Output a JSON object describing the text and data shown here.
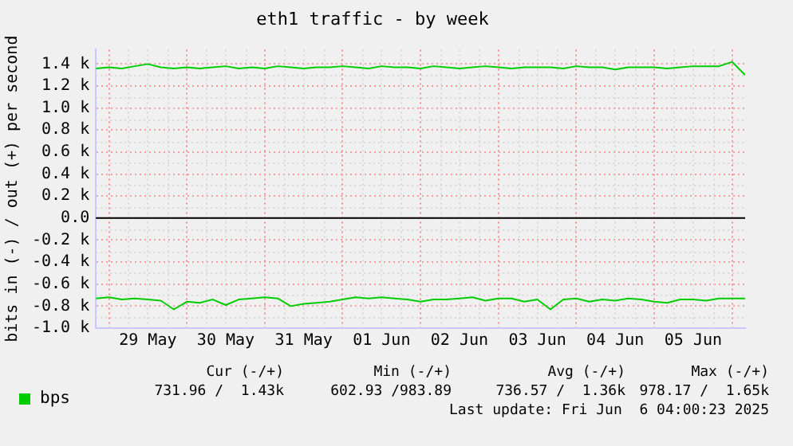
{
  "chart_data": {
    "type": "line",
    "title": "eth1 traffic - by week",
    "ylabel": "bits in (-) / out (+) per second",
    "x": [
      "2025-05-28T20:00",
      "2025-05-29T00:00",
      "2025-05-29T04:00",
      "2025-05-29T08:00",
      "2025-05-29T12:00",
      "2025-05-29T16:00",
      "2025-05-29T20:00",
      "2025-05-30T00:00",
      "2025-05-30T04:00",
      "2025-05-30T08:00",
      "2025-05-30T12:00",
      "2025-05-30T16:00",
      "2025-05-30T20:00",
      "2025-05-31T00:00",
      "2025-05-31T04:00",
      "2025-05-31T08:00",
      "2025-05-31T12:00",
      "2025-05-31T16:00",
      "2025-05-31T20:00",
      "2025-06-01T00:00",
      "2025-06-01T04:00",
      "2025-06-01T08:00",
      "2025-06-01T12:00",
      "2025-06-01T16:00",
      "2025-06-01T20:00",
      "2025-06-02T00:00",
      "2025-06-02T04:00",
      "2025-06-02T08:00",
      "2025-06-02T12:00",
      "2025-06-02T16:00",
      "2025-06-02T20:00",
      "2025-06-03T00:00",
      "2025-06-03T04:00",
      "2025-06-03T08:00",
      "2025-06-03T12:00",
      "2025-06-03T16:00",
      "2025-06-03T20:00",
      "2025-06-04T00:00",
      "2025-06-04T04:00",
      "2025-06-04T08:00",
      "2025-06-04T12:00",
      "2025-06-04T16:00",
      "2025-06-04T20:00",
      "2025-06-05T00:00",
      "2025-06-05T04:00",
      "2025-06-05T08:00",
      "2025-06-05T12:00",
      "2025-06-05T16:00",
      "2025-06-05T20:00",
      "2025-06-06T00:00",
      "2025-06-06T04:00"
    ],
    "series": [
      {
        "name": "bps",
        "color": "#00cc00",
        "values": [
          1360,
          1370,
          1360,
          1380,
          1400,
          1370,
          1360,
          1370,
          1360,
          1370,
          1380,
          1360,
          1370,
          1360,
          1380,
          1370,
          1360,
          1370,
          1370,
          1380,
          1370,
          1360,
          1380,
          1370,
          1370,
          1360,
          1380,
          1370,
          1360,
          1370,
          1380,
          1370,
          1360,
          1370,
          1370,
          1370,
          1360,
          1380,
          1370,
          1370,
          1350,
          1370,
          1370,
          1370,
          1360,
          1370,
          1380,
          1380,
          1380,
          1420,
          1300
        ]
      },
      {
        "color": "#00cc00",
        "values": [
          -730,
          -720,
          -740,
          -730,
          -740,
          -750,
          -830,
          -760,
          -770,
          -740,
          -790,
          -740,
          -730,
          -720,
          -730,
          -800,
          -780,
          -770,
          -760,
          -740,
          -720,
          -730,
          -720,
          -730,
          -740,
          -760,
          -740,
          -740,
          -730,
          -720,
          -750,
          -730,
          -730,
          -760,
          -740,
          -830,
          -740,
          -730,
          -760,
          -740,
          -750,
          -730,
          -740,
          -760,
          -770,
          -740,
          -740,
          -750,
          -730,
          -730,
          -730
        ]
      }
    ],
    "xlim": [
      "2025-05-28T20:00",
      "2025-06-06T04:00"
    ],
    "xticks": [
      {
        "value": "2025-05-29T00:00",
        "label": null
      },
      {
        "value": "2025-05-29T12:00",
        "label": "29 May"
      },
      {
        "value": "2025-05-30T00:00",
        "label": null
      },
      {
        "value": "2025-05-30T12:00",
        "label": "30 May"
      },
      {
        "value": "2025-05-31T00:00",
        "label": null
      },
      {
        "value": "2025-05-31T12:00",
        "label": "31 May"
      },
      {
        "value": "2025-06-01T00:00",
        "label": null
      },
      {
        "value": "2025-06-01T12:00",
        "label": "01 Jun"
      },
      {
        "value": "2025-06-02T00:00",
        "label": null
      },
      {
        "value": "2025-06-02T12:00",
        "label": "02 Jun"
      },
      {
        "value": "2025-06-03T00:00",
        "label": null
      },
      {
        "value": "2025-06-03T12:00",
        "label": "03 Jun"
      },
      {
        "value": "2025-06-04T00:00",
        "label": null
      },
      {
        "value": "2025-06-04T12:00",
        "label": "04 Jun"
      },
      {
        "value": "2025-06-05T00:00",
        "label": null
      },
      {
        "value": "2025-06-05T12:00",
        "label": "05 Jun"
      },
      {
        "value": "2025-06-06T00:00",
        "label": null
      }
    ],
    "ylim": [
      -1000,
      1530
    ],
    "yticks": [
      {
        "value": -1000,
        "label": "-1.0 k"
      },
      {
        "value": -800,
        "label": "-0.8 k"
      },
      {
        "value": -600,
        "label": "-0.6 k"
      },
      {
        "value": -400,
        "label": "-0.4 k"
      },
      {
        "value": -200,
        "label": "-0.2 k"
      },
      {
        "value": 0,
        "label": "0.0"
      },
      {
        "value": 200,
        "label": "0.2 k"
      },
      {
        "value": 400,
        "label": "0.4 k"
      },
      {
        "value": 600,
        "label": "0.6 k"
      },
      {
        "value": 800,
        "label": "0.8 k"
      },
      {
        "value": 1000,
        "label": "1.0 k"
      },
      {
        "value": 1200,
        "label": "1.2 k"
      },
      {
        "value": 1400,
        "label": "1.4 k"
      }
    ],
    "ref_lines": [
      {
        "axis": "y",
        "value": 0,
        "color": "#000000"
      }
    ],
    "grid": true,
    "legend": "bottom left",
    "marker": "none",
    "line_style": "solid",
    "annotations": [
      "Cur (-/+)",
      "Min (-/+)",
      "Avg (-/+)",
      "Max (-/+)",
      "731.96 /  1.43k",
      "602.93 /983.89",
      "736.57 /  1.36k",
      "978.17 /  1.65k",
      "Last update: Fri Jun  6 04:00:23 2025"
    ]
  }
}
